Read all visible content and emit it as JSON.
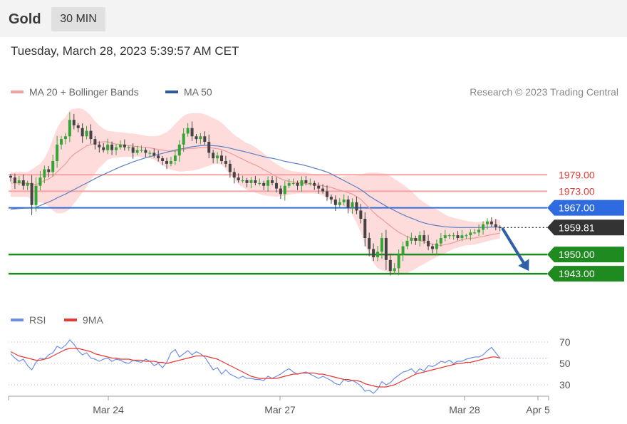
{
  "header": {
    "symbol": "Gold",
    "timeframe": "30 MIN",
    "datetime": "Tuesday, March 28, 2023 5:39:57 AM CET"
  },
  "legend": {
    "ma20": "MA 20 + Bollinger Bands",
    "ma50": "MA 50",
    "credit": "Research © 2023 Trading Central"
  },
  "rsi_legend": {
    "rsi": "RSI",
    "ma9": "9MA"
  },
  "colors": {
    "bull": "#36a436",
    "bear": "#444444",
    "bands": "#ffd6d6",
    "ma20": "#ef9a9a",
    "ma50": "#5b7fc0",
    "support": "#1f8a1f",
    "resistance": "#f6a2a2",
    "pivot": "#2f6be0",
    "arrow": "#2e5fa8",
    "last_price": "#333333",
    "rsi": "#6b8ee8",
    "rsi_ma": "#e53935"
  },
  "chart_data": [
    {
      "type": "candlestick",
      "title": "Gold",
      "timeframe": "30 MIN",
      "x_tick_labels": [
        "Mar 24",
        "Mar 27",
        "Mar 28",
        "Apr 5"
      ],
      "ylim": [
        1935,
        2005
      ],
      "levels": [
        {
          "value": 1979.0,
          "label": "1979.00",
          "kind": "resistance"
        },
        {
          "value": 1973.0,
          "label": "1973.00",
          "kind": "resistance"
        },
        {
          "value": 1967.0,
          "label": "1967.00",
          "kind": "pivot"
        },
        {
          "value": 1950.0,
          "label": "1950.00",
          "kind": "support"
        },
        {
          "value": 1943.0,
          "label": "1943.00",
          "kind": "support"
        }
      ],
      "last_price": {
        "value": 1959.81,
        "label": "1959.81"
      },
      "forecast_target": 1943.0,
      "closes": [
        1978,
        1976,
        1977,
        1975,
        1976,
        1968,
        1975,
        1978,
        1981,
        1980,
        1984,
        1990,
        1992,
        1993,
        1999,
        1997,
        1996,
        1993,
        1995,
        1992,
        1990,
        1989,
        1988,
        1990,
        1988,
        1989,
        1990,
        1989,
        1989,
        1987,
        1988,
        1988,
        1987,
        1987,
        1986,
        1985,
        1984,
        1983,
        1984,
        1986,
        1990,
        1994,
        1996,
        1993,
        1992,
        1993,
        1991,
        1987,
        1985,
        1986,
        1984,
        1983,
        1980,
        1978,
        1977,
        1977,
        1976,
        1977,
        1976,
        1976,
        1975,
        1977,
        1976,
        1974,
        1972,
        1975,
        1976,
        1976,
        1975,
        1977,
        1976,
        1976,
        1975,
        1974,
        1973,
        1971,
        1970,
        1968,
        1969,
        1970,
        1967,
        1969,
        1966,
        1963,
        1956,
        1952,
        1949,
        1951,
        1956,
        1948,
        1944,
        1945,
        1950,
        1953,
        1955,
        1956,
        1955,
        1957,
        1955,
        1953,
        1952,
        1954,
        1956,
        1957,
        1957,
        1957,
        1956,
        1957,
        1957,
        1958,
        1958,
        1959,
        1961,
        1962,
        1961,
        1960,
        1959.81
      ],
      "ma20": [
        1976,
        1976,
        1976,
        1976,
        1976,
        1975.5,
        1975.5,
        1976,
        1977,
        1977.5,
        1978.5,
        1980,
        1981.5,
        1983,
        1985,
        1986.5,
        1987.5,
        1988.5,
        1989.5,
        1990,
        1990.5,
        1990.8,
        1991,
        1991,
        1990.5,
        1990.2,
        1990,
        1989.8,
        1989.6,
        1989.4,
        1989.3,
        1989.1,
        1989,
        1988.8,
        1988.5,
        1988.2,
        1988,
        1987.7,
        1987.5,
        1987.6,
        1987.8,
        1988.2,
        1988.6,
        1988.6,
        1988.7,
        1988.9,
        1989,
        1988.9,
        1988.7,
        1988.5,
        1988.2,
        1987.6,
        1986.9,
        1986.2,
        1985.4,
        1984.7,
        1983.9,
        1983.2,
        1982.6,
        1981.8,
        1980.9,
        1980.1,
        1979.2,
        1978.4,
        1977.6,
        1977,
        1976.6,
        1976.4,
        1976.2,
        1976,
        1975.8,
        1975.6,
        1975.4,
        1975.2,
        1975,
        1974.7,
        1974.4,
        1973.9,
        1973.4,
        1973,
        1972.5,
        1972,
        1971.1,
        1970,
        1968.5,
        1967,
        1965.4,
        1964,
        1962.9,
        1961.6,
        1960.4,
        1959.2,
        1958.1,
        1957.3,
        1956.5,
        1956,
        1955.5,
        1955.1,
        1954.6,
        1954.2,
        1953.8,
        1953.4,
        1953.3,
        1953.6,
        1953.9,
        1954.3,
        1954.9,
        1955.4,
        1955.7,
        1955.9,
        1956,
        1956.3,
        1956.6,
        1956.9,
        1957.2,
        1957.5,
        1957.8
      ],
      "bb_upper": [
        1980,
        1980,
        1980,
        1980,
        1980,
        1981,
        1982,
        1983,
        1985,
        1988,
        1992,
        1996,
        1998.5,
        2000,
        2002.5,
        2003,
        2003.2,
        2003,
        2002,
        2000.5,
        1998.5,
        1997,
        1995.8,
        1995,
        1994.8,
        1994.6,
        1994.5,
        1994.3,
        1994.1,
        1994,
        1993.8,
        1993.5,
        1993.2,
        1993,
        1993,
        1993.2,
        1993.8,
        1994.5,
        1995.8,
        1997.5,
        1999,
        2000.5,
        2001.2,
        2001.5,
        2001.5,
        2001.4,
        2001,
        2000.4,
        1999.6,
        1999,
        1998,
        1996.5,
        1995,
        1993.5,
        1992.5,
        1991.5,
        1990.5,
        1990,
        1989,
        1988,
        1986.8,
        1985.5,
        1984,
        1983,
        1982,
        1981.2,
        1980.6,
        1980.3,
        1980.1,
        1980,
        1979.8,
        1979.6,
        1979.3,
        1979.2,
        1979.2,
        1979,
        1978.8,
        1978.5,
        1978.2,
        1978.4,
        1978.6,
        1978.5,
        1978.6,
        1978.9,
        1979.6,
        1979.8,
        1979.8,
        1979.8,
        1979.6,
        1979.4,
        1978.5,
        1977.5,
        1976.5,
        1975.5,
        1974.3,
        1973,
        1971.5,
        1970,
        1969,
        1968,
        1967,
        1966.5,
        1965.5,
        1964.5,
        1963.8,
        1963.4,
        1963,
        1962.6,
        1962.3,
        1962,
        1961.8,
        1961.8,
        1962,
        1962.3,
        1962.6,
        1962.8,
        1962.5
      ],
      "bb_lower": [
        1971,
        1971,
        1971,
        1971,
        1971,
        1970,
        1969,
        1969,
        1968.5,
        1967.5,
        1966,
        1965,
        1965,
        1965.5,
        1966.5,
        1968.5,
        1970.5,
        1972.5,
        1974.5,
        1977,
        1979.5,
        1981.5,
        1983,
        1984.5,
        1985,
        1985.2,
        1985.4,
        1985.5,
        1985.5,
        1985.5,
        1985.6,
        1985.4,
        1985.2,
        1985,
        1984.5,
        1983.5,
        1982.5,
        1981.5,
        1980.8,
        1980.5,
        1980.2,
        1980.2,
        1980.4,
        1980.5,
        1980.8,
        1981.2,
        1981.8,
        1982.2,
        1982.8,
        1983,
        1982.8,
        1981,
        1979,
        1977.5,
        1975.5,
        1974.5,
        1973.5,
        1973,
        1972.5,
        1972,
        1971.5,
        1971.3,
        1971.2,
        1971,
        1971.2,
        1971.4,
        1971.8,
        1972,
        1972.2,
        1972.2,
        1972.2,
        1972.2,
        1972.2,
        1972,
        1971.5,
        1970.5,
        1969.5,
        1968.5,
        1968,
        1967.5,
        1966.5,
        1964.5,
        1961.5,
        1958,
        1953.5,
        1950.5,
        1947,
        1945,
        1944.3,
        1943.8,
        1943.2,
        1942.8,
        1942.8,
        1943,
        1943.2,
        1944,
        1944.8,
        1945.8,
        1946.5,
        1947.5,
        1948.3,
        1949,
        1949.8,
        1950.5,
        1951.3,
        1952,
        1952.5,
        1953,
        1953.3,
        1953.4,
        1953.6,
        1954,
        1954.4,
        1954.8,
        1955.2,
        1955.5,
        1955.8
      ],
      "ma50": [
        1966.5,
        1966.6,
        1966.7,
        1966.8,
        1966.9,
        1966.8,
        1967.2,
        1967.8,
        1968.5,
        1969.1,
        1969.8,
        1970.6,
        1971.3,
        1972,
        1972.8,
        1973.6,
        1974.4,
        1975.2,
        1976,
        1976.8,
        1977.6,
        1978.4,
        1979.1,
        1979.8,
        1980.5,
        1981.2,
        1981.9,
        1982.5,
        1983.1,
        1983.7,
        1984.2,
        1984.7,
        1985.2,
        1985.6,
        1986,
        1986.4,
        1986.8,
        1987.2,
        1987.6,
        1988,
        1988.3,
        1988.6,
        1988.9,
        1989.2,
        1989.4,
        1989.6,
        1989.7,
        1989.7,
        1989.6,
        1989.5,
        1989.3,
        1989,
        1988.7,
        1988.3,
        1987.9,
        1987.6,
        1987.2,
        1986.8,
        1986.4,
        1986,
        1985.6,
        1985.3,
        1985,
        1984.7,
        1984.3,
        1983.9,
        1983.6,
        1983.3,
        1983,
        1982.7,
        1982.3,
        1981.9,
        1981.4,
        1981,
        1980.5,
        1980,
        1979.3,
        1978.5,
        1977.7,
        1976.9,
        1976.1,
        1975.3,
        1974.5,
        1973.6,
        1972.5,
        1971.3,
        1970.3,
        1969.4,
        1968.5,
        1967.6,
        1966.8,
        1966,
        1965.2,
        1964.5,
        1963.8,
        1963.2,
        1962.6,
        1962,
        1961.5,
        1961.1,
        1960.8,
        1960.5,
        1960.3,
        1960.1,
        1960,
        1959.9,
        1959.8,
        1959.8,
        1959.8,
        1959.8,
        1959.8,
        1959.8,
        1959.9,
        1959.9,
        1960,
        1960,
        1960
      ]
    },
    {
      "type": "line",
      "title": "RSI",
      "y_tick_labels": [
        "70",
        "50",
        "30"
      ],
      "ylim": [
        20,
        80
      ],
      "series": [
        {
          "name": "RSI",
          "values": [
            59,
            55,
            52,
            54,
            48,
            44,
            51,
            55,
            54,
            58,
            60,
            66,
            64,
            67,
            72,
            68,
            62,
            58,
            60,
            55,
            54,
            52,
            54,
            55,
            52,
            54,
            53,
            51,
            50,
            53,
            52,
            51,
            54,
            52,
            48,
            50,
            46,
            51,
            60,
            63,
            56,
            59,
            62,
            58,
            61,
            59,
            56,
            50,
            44,
            46,
            40,
            44,
            40,
            38,
            36,
            38,
            36,
            36,
            35,
            35,
            34,
            38,
            36,
            38,
            40,
            43,
            45,
            42,
            40,
            41,
            42,
            40,
            38,
            36,
            38,
            36,
            34,
            31,
            30,
            35,
            33,
            34,
            32,
            29,
            24,
            25,
            22,
            26,
            33,
            30,
            32,
            36,
            39,
            42,
            43,
            45,
            41,
            45,
            43,
            48,
            47,
            49,
            52,
            51,
            53,
            50,
            52,
            52,
            54,
            55,
            56,
            56,
            58,
            62,
            65,
            60,
            55
          ]
        },
        {
          "name": "9MA",
          "values": [
            61,
            59,
            57,
            56,
            55,
            54,
            53,
            53,
            54,
            55,
            57,
            59,
            61,
            63,
            64,
            64,
            64,
            63,
            62,
            61,
            59,
            58,
            57,
            56,
            55,
            55,
            54,
            54,
            54,
            53,
            53,
            53,
            52,
            52,
            52,
            51,
            51,
            50,
            51,
            52,
            53,
            54,
            55,
            56,
            57,
            57,
            57,
            56,
            55,
            54,
            52,
            50,
            48,
            46,
            44,
            42,
            40,
            38,
            37,
            36,
            36,
            36,
            36,
            36,
            37,
            38,
            39,
            40,
            40,
            41,
            41,
            41,
            41,
            40,
            40,
            39,
            38,
            37,
            36,
            35,
            35,
            34,
            34,
            33,
            31,
            30,
            29,
            28,
            28,
            28,
            29,
            30,
            32,
            34,
            36,
            38,
            40,
            41,
            42,
            43,
            44,
            45,
            46,
            47,
            48,
            49,
            50,
            50,
            51,
            51,
            52,
            53,
            54,
            55,
            56,
            56,
            55
          ]
        }
      ],
      "reference_lines": [
        70,
        50,
        30
      ]
    }
  ]
}
